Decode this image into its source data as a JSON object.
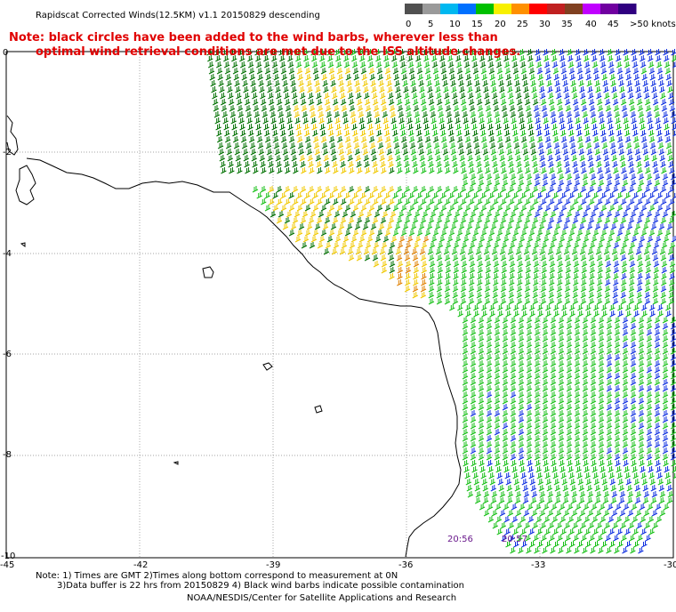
{
  "header": {
    "title": "Rapidscat Corrected Winds(12.5KM) v1.1 20150829 descending",
    "note_line1": "Note: black circles have been added to the wind barbs, wherever less than",
    "note_line2": "optimal wind retrieval conditions are met due to the ISS altitude changes."
  },
  "legend": {
    "labels": [
      "0",
      "5",
      "10",
      "15",
      "20",
      "25",
      "30",
      "35",
      "40",
      "45",
      ">50 knots"
    ],
    "colors": [
      "#505050",
      "#9a9a9a",
      "#00b8f0",
      "#0070ff",
      "#00c000",
      "#f8f000",
      "#ff9000",
      "#ff0000",
      "#c02020",
      "#804020",
      "#c000ff",
      "#7000a0",
      "#300080"
    ]
  },
  "axes": {
    "y_labels": [
      "0",
      "-2",
      "-4",
      "-6",
      "-8",
      "-10"
    ],
    "x_labels": [
      "-45",
      "-42",
      "-39",
      "-36",
      "-33",
      "-30"
    ]
  },
  "swath_times": [
    "20:56",
    "20:57"
  ],
  "footer": {
    "line1": "Note: 1) Times are GMT 2)Times along bottom correspond to measurement at 0N",
    "line2": "3)Data buffer is 22 hrs from 20150829 4) Black wind barbs indicate possible contamination",
    "line3": "NOAA/NESDIS/Center for Satellite Applications and Research"
  },
  "wind_colors": {
    "dark_green": "#007000",
    "green": "#18c018",
    "blue": "#1030e0",
    "yellow": "#f0c800",
    "orange": "#e08000"
  }
}
